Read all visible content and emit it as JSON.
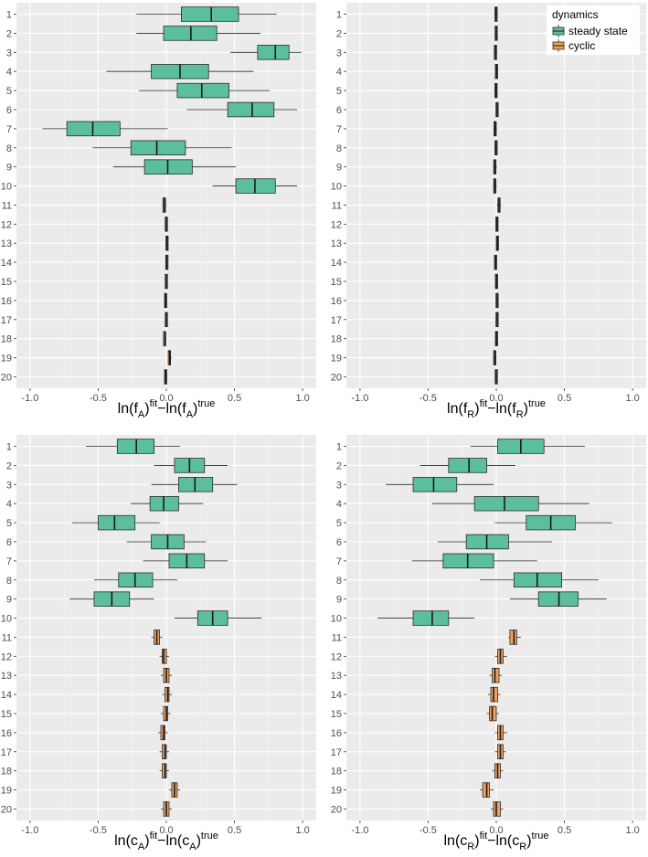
{
  "colors": {
    "steady": "#5bbf9b",
    "cyclic": "#f0a15f",
    "panel_bg": "#ebebeb",
    "grid_major": "#ffffff",
    "grid_minor": "#f5f5f5",
    "box_edge": "#2b2b2b"
  },
  "legend": {
    "title": "dynamics",
    "items": [
      {
        "label": "steady state",
        "color": "#5bbf9b"
      },
      {
        "label": "cyclic",
        "color": "#f0a15f"
      }
    ]
  },
  "chart_data": [
    {
      "type": "boxplot",
      "orientation": "horizontal",
      "xlabel": {
        "base": "ln(f",
        "sub": "A",
        "mid": ")",
        "sup": "fit",
        "base2": "−ln(f",
        "sub2": "A",
        "mid2": ")",
        "sup2": "true"
      },
      "xlabel_text": "ln(fA)fit−ln(fA)true",
      "xlim": [
        -1.1,
        1.1
      ],
      "xticks": [
        -1.0,
        -0.5,
        0.0,
        0.5,
        1.0
      ],
      "xtick_labels": [
        "-1.0",
        "-0.5",
        "0.0",
        "0.5",
        "1.0"
      ],
      "categories": [
        "1",
        "2",
        "3",
        "4",
        "5",
        "6",
        "7",
        "8",
        "9",
        "10",
        "11",
        "12",
        "13",
        "14",
        "15",
        "16",
        "17",
        "18",
        "19",
        "20"
      ],
      "boxes": [
        {
          "cat": "1",
          "min": -0.22,
          "q1": 0.11,
          "median": 0.33,
          "q3": 0.53,
          "max": 0.81,
          "group": "steady"
        },
        {
          "cat": "2",
          "min": -0.22,
          "q1": -0.02,
          "median": 0.18,
          "q3": 0.37,
          "max": 0.69,
          "group": "steady"
        },
        {
          "cat": "3",
          "min": 0.47,
          "q1": 0.67,
          "median": 0.8,
          "q3": 0.9,
          "max": 0.99,
          "group": "steady"
        },
        {
          "cat": "4",
          "min": -0.44,
          "q1": -0.11,
          "median": 0.1,
          "q3": 0.31,
          "max": 0.64,
          "group": "steady"
        },
        {
          "cat": "5",
          "min": -0.2,
          "q1": 0.08,
          "median": 0.26,
          "q3": 0.46,
          "max": 0.76,
          "group": "steady"
        },
        {
          "cat": "6",
          "min": 0.15,
          "q1": 0.45,
          "median": 0.63,
          "q3": 0.79,
          "max": 0.96,
          "group": "steady"
        },
        {
          "cat": "7",
          "min": -0.91,
          "q1": -0.73,
          "median": -0.54,
          "q3": -0.34,
          "max": 0.01,
          "group": "steady"
        },
        {
          "cat": "8",
          "min": -0.54,
          "q1": -0.26,
          "median": -0.07,
          "q3": 0.14,
          "max": 0.48,
          "group": "steady"
        },
        {
          "cat": "9",
          "min": -0.39,
          "q1": -0.16,
          "median": 0.01,
          "q3": 0.19,
          "max": 0.51,
          "group": "steady"
        },
        {
          "cat": "10",
          "min": 0.34,
          "q1": 0.51,
          "median": 0.65,
          "q3": 0.8,
          "max": 0.96,
          "group": "steady"
        },
        {
          "cat": "11",
          "min": -0.03,
          "q1": -0.025,
          "median": -0.015,
          "q3": -0.005,
          "max": 0.0,
          "group": "cyclic"
        },
        {
          "cat": "12",
          "min": -0.01,
          "q1": -0.005,
          "median": 0.0,
          "q3": 0.005,
          "max": 0.01,
          "group": "cyclic"
        },
        {
          "cat": "13",
          "min": -0.005,
          "q1": 0.0,
          "median": 0.005,
          "q3": 0.01,
          "max": 0.015,
          "group": "cyclic"
        },
        {
          "cat": "14",
          "min": -0.005,
          "q1": 0.0,
          "median": 0.003,
          "q3": 0.008,
          "max": 0.012,
          "group": "cyclic"
        },
        {
          "cat": "15",
          "min": -0.01,
          "q1": -0.005,
          "median": 0.0,
          "q3": 0.005,
          "max": 0.01,
          "group": "cyclic"
        },
        {
          "cat": "16",
          "min": -0.015,
          "q1": -0.01,
          "median": -0.005,
          "q3": 0.0,
          "max": 0.005,
          "group": "cyclic"
        },
        {
          "cat": "17",
          "min": -0.01,
          "q1": -0.005,
          "median": 0.0,
          "q3": 0.005,
          "max": 0.01,
          "group": "cyclic"
        },
        {
          "cat": "18",
          "min": -0.025,
          "q1": -0.02,
          "median": -0.01,
          "q3": -0.005,
          "max": 0.0,
          "group": "cyclic"
        },
        {
          "cat": "19",
          "min": 0.01,
          "q1": 0.015,
          "median": 0.025,
          "q3": 0.03,
          "max": 0.04,
          "group": "cyclic"
        },
        {
          "cat": "20",
          "min": -0.015,
          "q1": -0.01,
          "median": -0.005,
          "q3": 0.0,
          "max": 0.005,
          "group": "cyclic"
        }
      ]
    },
    {
      "type": "boxplot",
      "orientation": "horizontal",
      "xlabel": {
        "base": "ln(f",
        "sub": "R",
        "mid": ")",
        "sup": "fit",
        "base2": "−ln(f",
        "sub2": "R",
        "mid2": ")",
        "sup2": "true"
      },
      "xlabel_text": "ln(fR)fit−ln(fR)true",
      "xlim": [
        -1.1,
        1.1
      ],
      "xticks": [
        -1.0,
        -0.5,
        0.0,
        0.5,
        1.0
      ],
      "xtick_labels": [
        "-1.0",
        "-0.5",
        "0.0",
        "0.5",
        "1.0"
      ],
      "categories": [
        "1",
        "2",
        "3",
        "4",
        "5",
        "6",
        "7",
        "8",
        "9",
        "10",
        "11",
        "12",
        "13",
        "14",
        "15",
        "16",
        "17",
        "18",
        "19",
        "20"
      ],
      "boxes": [
        {
          "cat": "1",
          "min": -0.015,
          "q1": -0.008,
          "median": -0.002,
          "q3": 0.005,
          "max": 0.012,
          "group": "steady"
        },
        {
          "cat": "2",
          "min": -0.012,
          "q1": -0.006,
          "median": 0.0,
          "q3": 0.005,
          "max": 0.01,
          "group": "steady"
        },
        {
          "cat": "3",
          "min": -0.02,
          "q1": -0.012,
          "median": -0.006,
          "q3": 0.0,
          "max": 0.008,
          "group": "steady"
        },
        {
          "cat": "4",
          "min": -0.008,
          "q1": -0.003,
          "median": 0.002,
          "q3": 0.006,
          "max": 0.012,
          "group": "steady"
        },
        {
          "cat": "5",
          "min": -0.015,
          "q1": -0.008,
          "median": -0.002,
          "q3": 0.004,
          "max": 0.01,
          "group": "steady"
        },
        {
          "cat": "6",
          "min": -0.005,
          "q1": 0.0,
          "median": 0.006,
          "q3": 0.012,
          "max": 0.018,
          "group": "steady"
        },
        {
          "cat": "7",
          "min": -0.022,
          "q1": -0.015,
          "median": -0.008,
          "q3": -0.002,
          "max": 0.005,
          "group": "steady"
        },
        {
          "cat": "8",
          "min": -0.015,
          "q1": -0.008,
          "median": -0.002,
          "q3": 0.005,
          "max": 0.012,
          "group": "steady"
        },
        {
          "cat": "9",
          "min": -0.025,
          "q1": -0.018,
          "median": -0.01,
          "q3": -0.003,
          "max": 0.005,
          "group": "steady"
        },
        {
          "cat": "10",
          "min": -0.025,
          "q1": -0.018,
          "median": -0.01,
          "q3": -0.003,
          "max": 0.004,
          "group": "steady"
        },
        {
          "cat": "11",
          "min": 0.005,
          "q1": 0.012,
          "median": 0.02,
          "q3": 0.028,
          "max": 0.036,
          "group": "cyclic"
        },
        {
          "cat": "12",
          "min": -0.005,
          "q1": 0.0,
          "median": 0.005,
          "q3": 0.01,
          "max": 0.015,
          "group": "cyclic"
        },
        {
          "cat": "13",
          "min": -0.002,
          "q1": 0.003,
          "median": 0.008,
          "q3": 0.014,
          "max": 0.02,
          "group": "cyclic"
        },
        {
          "cat": "14",
          "min": -0.015,
          "q1": -0.01,
          "median": -0.005,
          "q3": 0.0,
          "max": 0.005,
          "group": "cyclic"
        },
        {
          "cat": "15",
          "min": -0.008,
          "q1": -0.003,
          "median": 0.002,
          "q3": 0.007,
          "max": 0.012,
          "group": "cyclic"
        },
        {
          "cat": "16",
          "min": -0.004,
          "q1": 0.001,
          "median": 0.006,
          "q3": 0.011,
          "max": 0.016,
          "group": "cyclic"
        },
        {
          "cat": "17",
          "min": -0.004,
          "q1": 0.001,
          "median": 0.006,
          "q3": 0.011,
          "max": 0.016,
          "group": "cyclic"
        },
        {
          "cat": "18",
          "min": -0.01,
          "q1": -0.004,
          "median": 0.002,
          "q3": 0.008,
          "max": 0.014,
          "group": "cyclic"
        },
        {
          "cat": "19",
          "min": -0.025,
          "q1": -0.018,
          "median": -0.01,
          "q3": -0.004,
          "max": 0.002,
          "group": "cyclic"
        },
        {
          "cat": "20",
          "min": -0.012,
          "q1": -0.006,
          "median": 0.0,
          "q3": 0.006,
          "max": 0.012,
          "group": "cyclic"
        }
      ]
    },
    {
      "type": "boxplot",
      "orientation": "horizontal",
      "xlabel": {
        "base": "ln(c",
        "sub": "A",
        "mid": ")",
        "sup": "fit",
        "base2": "−ln(c",
        "sub2": "A",
        "mid2": ")",
        "sup2": "true"
      },
      "xlabel_text": "ln(cA)fit−ln(cA)true",
      "xlim": [
        -1.1,
        1.1
      ],
      "xticks": [
        -1.0,
        -0.5,
        0.0,
        0.5,
        1.0
      ],
      "xtick_labels": [
        "-1.0",
        "-0.5",
        "0.0",
        "0.5",
        "1.0"
      ],
      "categories": [
        "1",
        "2",
        "3",
        "4",
        "5",
        "6",
        "7",
        "8",
        "9",
        "10",
        "11",
        "12",
        "13",
        "14",
        "15",
        "16",
        "17",
        "18",
        "19",
        "20"
      ],
      "boxes": [
        {
          "cat": "1",
          "min": -0.59,
          "q1": -0.36,
          "median": -0.22,
          "q3": -0.09,
          "max": 0.1,
          "group": "steady"
        },
        {
          "cat": "2",
          "min": -0.09,
          "q1": 0.06,
          "median": 0.17,
          "q3": 0.28,
          "max": 0.45,
          "group": "steady"
        },
        {
          "cat": "3",
          "min": -0.11,
          "q1": 0.09,
          "median": 0.21,
          "q3": 0.34,
          "max": 0.52,
          "group": "steady"
        },
        {
          "cat": "4",
          "min": -0.26,
          "q1": -0.12,
          "median": -0.02,
          "q3": 0.09,
          "max": 0.27,
          "group": "steady"
        },
        {
          "cat": "5",
          "min": -0.69,
          "q1": -0.5,
          "median": -0.38,
          "q3": -0.23,
          "max": -0.05,
          "group": "steady"
        },
        {
          "cat": "6",
          "min": -0.29,
          "q1": -0.11,
          "median": 0.01,
          "q3": 0.13,
          "max": 0.29,
          "group": "steady"
        },
        {
          "cat": "7",
          "min": -0.17,
          "q1": 0.02,
          "median": 0.15,
          "q3": 0.28,
          "max": 0.45,
          "group": "steady"
        },
        {
          "cat": "8",
          "min": -0.53,
          "q1": -0.35,
          "median": -0.23,
          "q3": -0.1,
          "max": 0.08,
          "group": "steady"
        },
        {
          "cat": "9",
          "min": -0.71,
          "q1": -0.53,
          "median": -0.4,
          "q3": -0.27,
          "max": -0.09,
          "group": "steady"
        },
        {
          "cat": "10",
          "min": 0.06,
          "q1": 0.23,
          "median": 0.34,
          "q3": 0.45,
          "max": 0.7,
          "group": "steady"
        },
        {
          "cat": "11",
          "min": -0.11,
          "q1": -0.09,
          "median": -0.07,
          "q3": -0.05,
          "max": -0.03,
          "group": "cyclic"
        },
        {
          "cat": "12",
          "min": -0.05,
          "q1": -0.03,
          "median": -0.02,
          "q3": 0.0,
          "max": 0.02,
          "group": "cyclic"
        },
        {
          "cat": "13",
          "min": -0.04,
          "q1": -0.02,
          "median": 0.0,
          "q3": 0.02,
          "max": 0.04,
          "group": "cyclic"
        },
        {
          "cat": "14",
          "min": -0.03,
          "q1": -0.01,
          "median": 0.01,
          "q3": 0.02,
          "max": 0.04,
          "group": "cyclic"
        },
        {
          "cat": "15",
          "min": -0.04,
          "q1": -0.02,
          "median": 0.0,
          "q3": 0.01,
          "max": 0.03,
          "group": "cyclic"
        },
        {
          "cat": "16",
          "min": -0.06,
          "q1": -0.04,
          "median": -0.02,
          "q3": -0.01,
          "max": 0.01,
          "group": "cyclic"
        },
        {
          "cat": "17",
          "min": -0.05,
          "q1": -0.03,
          "median": -0.01,
          "q3": 0.0,
          "max": 0.02,
          "group": "cyclic"
        },
        {
          "cat": "18",
          "min": -0.05,
          "q1": -0.03,
          "median": -0.01,
          "q3": 0.0,
          "max": 0.02,
          "group": "cyclic"
        },
        {
          "cat": "19",
          "min": 0.02,
          "q1": 0.04,
          "median": 0.06,
          "q3": 0.08,
          "max": 0.1,
          "group": "cyclic"
        },
        {
          "cat": "20",
          "min": -0.04,
          "q1": -0.02,
          "median": 0.0,
          "q3": 0.02,
          "max": 0.04,
          "group": "cyclic"
        }
      ]
    },
    {
      "type": "boxplot",
      "orientation": "horizontal",
      "xlabel": {
        "base": "ln(c",
        "sub": "R",
        "mid": ")",
        "sup": "fit",
        "base2": "−ln(c",
        "sub2": "R",
        "mid2": ")",
        "sup2": "true"
      },
      "xlabel_text": "ln(cR)fit−ln(cR)true",
      "xlim": [
        -1.1,
        1.1
      ],
      "xticks": [
        -1.0,
        -0.5,
        0.0,
        0.5,
        1.0
      ],
      "xtick_labels": [
        "-1.0",
        "-0.5",
        "0.0",
        "0.5",
        "1.0"
      ],
      "categories": [
        "1",
        "2",
        "3",
        "4",
        "5",
        "6",
        "7",
        "8",
        "9",
        "10",
        "11",
        "12",
        "13",
        "14",
        "15",
        "16",
        "17",
        "18",
        "19",
        "20"
      ],
      "boxes": [
        {
          "cat": "1",
          "min": -0.19,
          "q1": 0.01,
          "median": 0.18,
          "q3": 0.35,
          "max": 0.65,
          "group": "steady"
        },
        {
          "cat": "2",
          "min": -0.56,
          "q1": -0.35,
          "median": -0.2,
          "q3": -0.07,
          "max": 0.14,
          "group": "steady"
        },
        {
          "cat": "3",
          "min": -0.81,
          "q1": -0.61,
          "median": -0.46,
          "q3": -0.29,
          "max": -0.02,
          "group": "steady"
        },
        {
          "cat": "4",
          "min": -0.47,
          "q1": -0.16,
          "median": 0.06,
          "q3": 0.31,
          "max": 0.68,
          "group": "steady"
        },
        {
          "cat": "5",
          "min": -0.01,
          "q1": 0.22,
          "median": 0.4,
          "q3": 0.58,
          "max": 0.85,
          "group": "steady"
        },
        {
          "cat": "6",
          "min": -0.43,
          "q1": -0.22,
          "median": -0.07,
          "q3": 0.09,
          "max": 0.41,
          "group": "steady"
        },
        {
          "cat": "7",
          "min": -0.62,
          "q1": -0.39,
          "median": -0.21,
          "q3": -0.02,
          "max": 0.3,
          "group": "steady"
        },
        {
          "cat": "8",
          "min": -0.12,
          "q1": 0.13,
          "median": 0.3,
          "q3": 0.48,
          "max": 0.75,
          "group": "steady"
        },
        {
          "cat": "9",
          "min": 0.1,
          "q1": 0.31,
          "median": 0.46,
          "q3": 0.6,
          "max": 0.81,
          "group": "steady"
        },
        {
          "cat": "10",
          "min": -0.87,
          "q1": -0.61,
          "median": -0.47,
          "q3": -0.35,
          "max": -0.16,
          "group": "steady"
        },
        {
          "cat": "11",
          "min": 0.09,
          "q1": 0.1,
          "median": 0.13,
          "q3": 0.15,
          "max": 0.18,
          "group": "cyclic"
        },
        {
          "cat": "12",
          "min": -0.01,
          "q1": 0.01,
          "median": 0.03,
          "q3": 0.05,
          "max": 0.08,
          "group": "cyclic"
        },
        {
          "cat": "13",
          "min": -0.05,
          "q1": -0.03,
          "median": -0.01,
          "q3": 0.02,
          "max": 0.04,
          "group": "cyclic"
        },
        {
          "cat": "14",
          "min": -0.06,
          "q1": -0.04,
          "median": -0.02,
          "q3": 0.01,
          "max": 0.03,
          "group": "cyclic"
        },
        {
          "cat": "15",
          "min": -0.07,
          "q1": -0.05,
          "median": -0.03,
          "q3": 0.0,
          "max": 0.02,
          "group": "cyclic"
        },
        {
          "cat": "16",
          "min": -0.01,
          "q1": 0.01,
          "median": 0.03,
          "q3": 0.05,
          "max": 0.08,
          "group": "cyclic"
        },
        {
          "cat": "17",
          "min": -0.01,
          "q1": 0.01,
          "median": 0.03,
          "q3": 0.05,
          "max": 0.07,
          "group": "cyclic"
        },
        {
          "cat": "18",
          "min": -0.03,
          "q1": -0.01,
          "median": 0.01,
          "q3": 0.03,
          "max": 0.05,
          "group": "cyclic"
        },
        {
          "cat": "19",
          "min": -0.12,
          "q1": -0.1,
          "median": -0.07,
          "q3": -0.05,
          "max": -0.02,
          "group": "cyclic"
        },
        {
          "cat": "20",
          "min": -0.04,
          "q1": -0.02,
          "median": 0.0,
          "q3": 0.03,
          "max": 0.05,
          "group": "cyclic"
        }
      ]
    }
  ]
}
